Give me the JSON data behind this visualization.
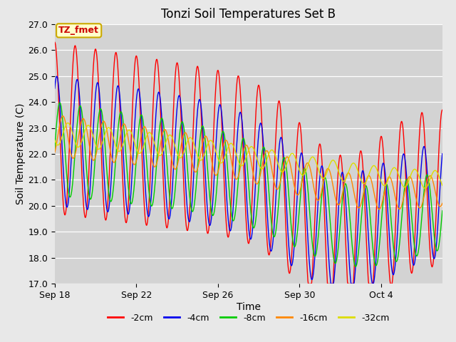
{
  "title": "Tonzi Soil Temperatures Set B",
  "xlabel": "Time",
  "ylabel": "Soil Temperature (C)",
  "ylim": [
    17.0,
    27.0
  ],
  "yticks": [
    17.0,
    18.0,
    19.0,
    20.0,
    21.0,
    22.0,
    23.0,
    24.0,
    25.0,
    26.0,
    27.0
  ],
  "bg_color": "#e8e8e8",
  "plot_bg_color": "#d3d3d3",
  "line_colors": [
    "#ff0000",
    "#0000ee",
    "#00cc00",
    "#ff8800",
    "#dddd00"
  ],
  "line_labels": [
    "-2cm",
    "-4cm",
    "-8cm",
    "-16cm",
    "-32cm"
  ],
  "annotation_text": "TZ_fmet",
  "annotation_bg": "#ffffcc",
  "annotation_border": "#ccaa00",
  "n_days": 19,
  "xtick_positions": [
    0,
    4,
    8,
    12,
    16
  ],
  "xtick_labels": [
    "Sep 18",
    "Sep 22",
    "Sep 26",
    "Sep 30",
    "Oct 4"
  ],
  "title_fontsize": 12,
  "axis_label_fontsize": 10,
  "tick_fontsize": 9,
  "legend_fontsize": 9
}
